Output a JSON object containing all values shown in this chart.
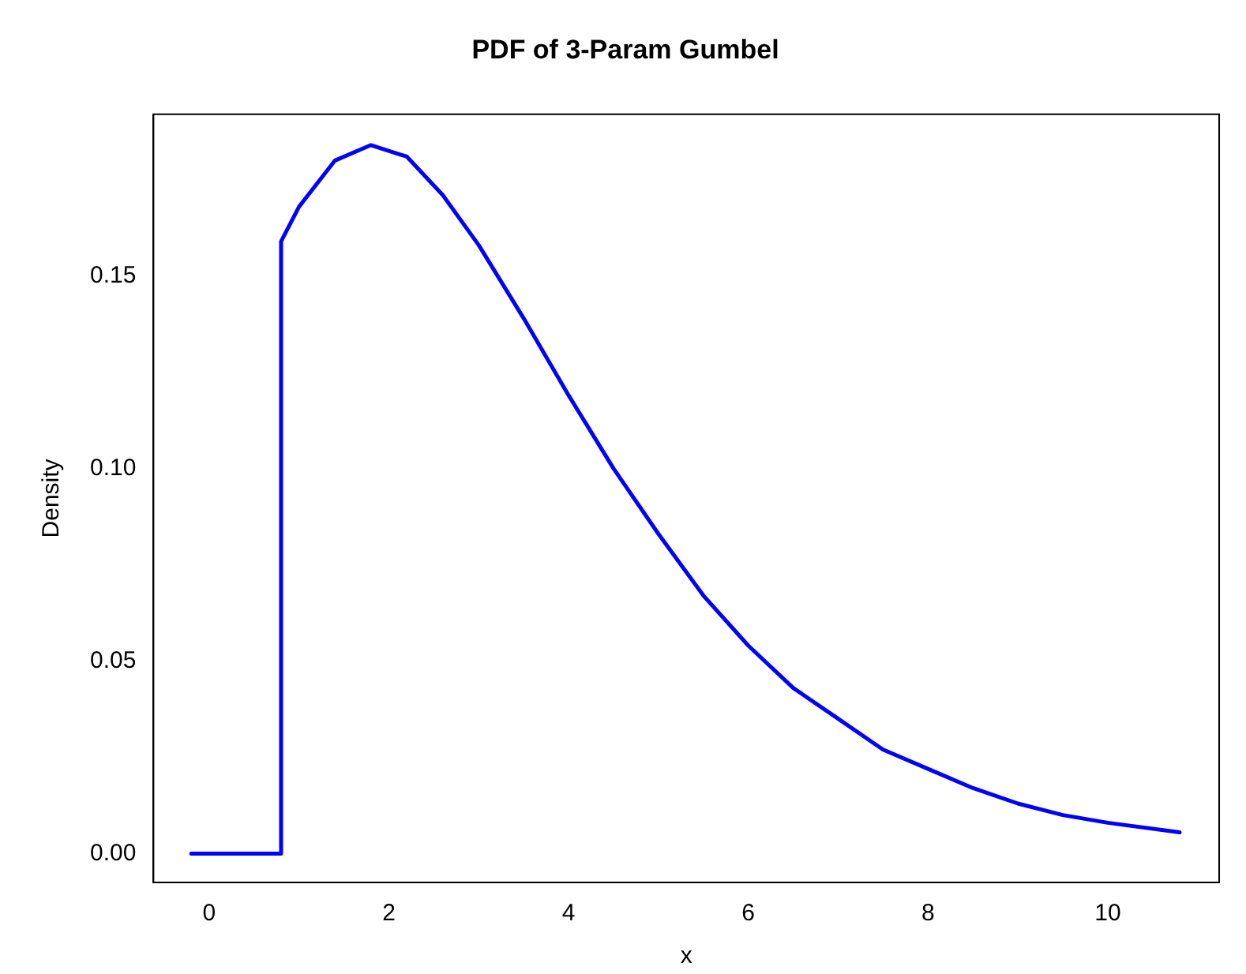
{
  "chart_data": {
    "type": "line",
    "title": "PDF of 3-Param Gumbel",
    "xlabel": "x",
    "ylabel": "Density",
    "x": [
      -0.2,
      0.8,
      0.8,
      1.0,
      1.4,
      1.8,
      2.2,
      2.6,
      3.0,
      3.5,
      4.0,
      4.5,
      5.0,
      5.5,
      6.0,
      6.5,
      7.0,
      7.5,
      8.0,
      8.5,
      9.0,
      9.5,
      10.0,
      10.8
    ],
    "series": [
      {
        "color": "#0000ff",
        "values": [
          0,
          0,
          0.159,
          0.168,
          0.18,
          0.184,
          0.181,
          0.171,
          0.158,
          0.139,
          0.119,
          0.1,
          0.083,
          0.067,
          0.054,
          0.043,
          0.035,
          0.027,
          0.022,
          0.017,
          0.013,
          0.01,
          0.008,
          0.0055
        ]
      }
    ],
    "xlim": [
      -0.62,
      11.24
    ],
    "ylim": [
      -0.0075,
      0.192
    ],
    "xticks": [
      0,
      2,
      4,
      6,
      8,
      10
    ],
    "yticks": [
      {
        "value": 0,
        "label": "0.00"
      },
      {
        "value": 0.05,
        "label": "0.05"
      },
      {
        "value": 0.1,
        "label": "0.10"
      },
      {
        "value": 0.15,
        "label": "0.15"
      }
    ],
    "grid": false,
    "legend": false,
    "marker": "none",
    "line_style": "solid"
  }
}
